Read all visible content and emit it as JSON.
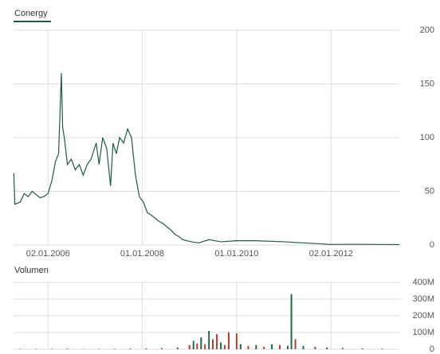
{
  "chart_data": [
    {
      "type": "line",
      "xlim": [
        "2005-04-10",
        "2013-06-20"
      ],
      "xticks": [
        {
          "value": "2006-01-02",
          "label": "02.01.2006"
        },
        {
          "value": "2008-01-01",
          "label": "01.01.2008"
        },
        {
          "value": "2010-01-01",
          "label": "01.01.2010"
        },
        {
          "value": "2012-01-02",
          "label": "02.01.2012"
        }
      ],
      "ylim": [
        0,
        200
      ],
      "yticks": [
        0,
        50,
        100,
        150,
        200
      ],
      "grid": true,
      "x": [
        "2005-04-12",
        "2005-04-20",
        "2005-06-01",
        "2005-07-01",
        "2005-08-01",
        "2005-09-01",
        "2005-10-01",
        "2005-11-01",
        "2005-12-01",
        "2006-01-02",
        "2006-02-01",
        "2006-03-01",
        "2006-03-25",
        "2006-04-15",
        "2006-04-25",
        "2006-05-10",
        "2006-06-01",
        "2006-07-01",
        "2006-08-01",
        "2006-09-01",
        "2006-10-01",
        "2006-11-01",
        "2006-12-01",
        "2007-01-10",
        "2007-02-01",
        "2007-03-01",
        "2007-04-01",
        "2007-05-01",
        "2007-05-20",
        "2007-06-15",
        "2007-07-10",
        "2007-08-10",
        "2007-09-10",
        "2007-10-10",
        "2007-11-10",
        "2007-12-10",
        "2008-01-10",
        "2008-02-10",
        "2008-03-10",
        "2008-04-10",
        "2008-05-10",
        "2008-06-10",
        "2008-07-10",
        "2008-08-10",
        "2008-09-10",
        "2008-10-10",
        "2008-11-10",
        "2008-12-10",
        "2009-01-15",
        "2009-03-15",
        "2009-06-01",
        "2009-09-01",
        "2010-01-01",
        "2010-06-01",
        "2011-01-01",
        "2011-06-01",
        "2012-01-02",
        "2012-06-01",
        "2013-01-01",
        "2013-06-15"
      ],
      "series": [
        {
          "name": "Conergy",
          "color": "#1d5c42",
          "values": [
            67,
            38,
            40,
            48,
            45,
            50,
            47,
            44,
            45,
            48,
            60,
            78,
            85,
            160,
            110,
            98,
            75,
            80,
            70,
            75,
            65,
            75,
            80,
            95,
            75,
            100,
            90,
            55,
            95,
            85,
            100,
            95,
            108,
            100,
            65,
            45,
            40,
            30,
            28,
            25,
            22,
            20,
            17,
            14,
            10,
            8,
            5,
            4,
            3,
            2,
            5,
            3,
            4,
            4,
            3,
            2,
            0.5,
            0.7,
            0.5,
            0.4
          ]
        }
      ]
    },
    {
      "type": "bar",
      "title": "Volumen",
      "ylim": [
        0,
        400
      ],
      "yticks": [
        0,
        {
          "value": 100,
          "label": "100M"
        },
        {
          "value": 200,
          "label": "200M"
        },
        {
          "value": 300,
          "label": "300M"
        },
        {
          "value": 400,
          "label": "400M"
        }
      ],
      "grid": true,
      "x": [
        "2005-06-01",
        "2005-10-01",
        "2006-02-01",
        "2006-06-01",
        "2006-10-01",
        "2007-02-01",
        "2007-06-01",
        "2007-10-01",
        "2008-02-01",
        "2008-06-01",
        "2008-10-01",
        "2009-01-01",
        "2009-02-01",
        "2009-03-01",
        "2009-04-01",
        "2009-05-01",
        "2009-06-01",
        "2009-07-01",
        "2009-08-01",
        "2009-09-01",
        "2009-10-01",
        "2009-11-01",
        "2010-01-01",
        "2010-02-01",
        "2010-04-01",
        "2010-06-01",
        "2010-08-01",
        "2010-10-01",
        "2010-12-01",
        "2011-02-01",
        "2011-03-01",
        "2011-04-01",
        "2011-06-01",
        "2011-09-01",
        "2011-12-01",
        "2012-04-01",
        "2012-09-01",
        "2013-02-01"
      ],
      "values": [
        2,
        3,
        2,
        4,
        2,
        3,
        3,
        4,
        5,
        6,
        10,
        25,
        50,
        35,
        70,
        30,
        110,
        60,
        90,
        40,
        25,
        100,
        95,
        30,
        20,
        25,
        15,
        30,
        25,
        20,
        330,
        60,
        20,
        15,
        10,
        8,
        5,
        4
      ],
      "colors": [
        "#1d6b45",
        "#c0392b",
        "#1d6b45",
        "#c0392b",
        "#1d6b45",
        "#c0392b",
        "#1d6b45",
        "#c0392b",
        "#1d6b45",
        "#c0392b",
        "#1d6b45",
        "#c0392b",
        "#1d6b45",
        "#c0392b",
        "#1d6b45",
        "#c0392b",
        "#1d6b45",
        "#c0392b",
        "#c0392b",
        "#1d6b45",
        "#c0392b",
        "#c0392b",
        "#c0392b",
        "#1d6b45",
        "#c0392b",
        "#1d6b45",
        "#c0392b",
        "#1d6b45",
        "#c0392b",
        "#1d6b45",
        "#1d6b45",
        "#c0392b",
        "#1d6b45",
        "#c0392b",
        "#1d6b45",
        "#c0392b",
        "#1d6b45",
        "#c0392b"
      ]
    }
  ]
}
